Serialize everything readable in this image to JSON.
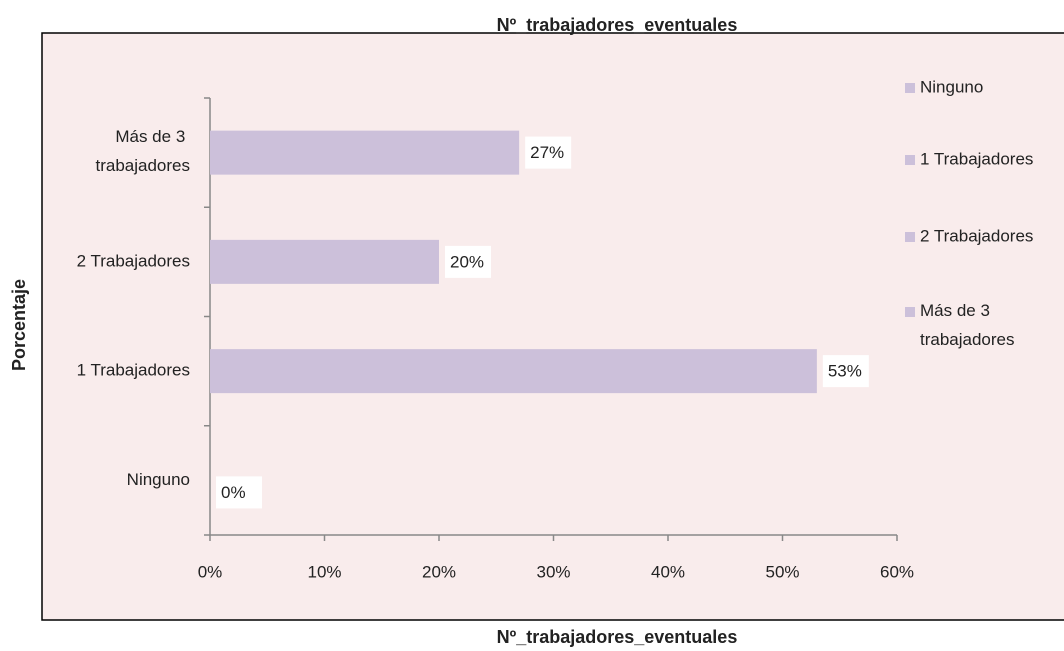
{
  "chart_data": {
    "type": "bar",
    "orientation": "horizontal",
    "title": "Nº_trabajadores_eventuales",
    "x_label": "Nº_trabajadores_eventuales",
    "y_label": "Porcentaje",
    "categories": [
      "Ninguno",
      "1 Trabajadores",
      "2 Trabajadores",
      "Más de 3 trabajadores"
    ],
    "values": [
      0,
      53,
      20,
      27
    ],
    "value_labels": [
      "0%",
      "53%",
      "20%",
      "27%"
    ],
    "color": "#ccc0da",
    "xlim": [
      0,
      60
    ],
    "xticks": [
      {
        "value": 0,
        "label": "0%"
      },
      {
        "value": 10,
        "label": "10%"
      },
      {
        "value": 20,
        "label": "20%"
      },
      {
        "value": 30,
        "label": "30%"
      },
      {
        "value": 40,
        "label": "40%"
      },
      {
        "value": 50,
        "label": "50%"
      },
      {
        "value": 60,
        "label": "60%"
      }
    ],
    "legend": "right"
  }
}
